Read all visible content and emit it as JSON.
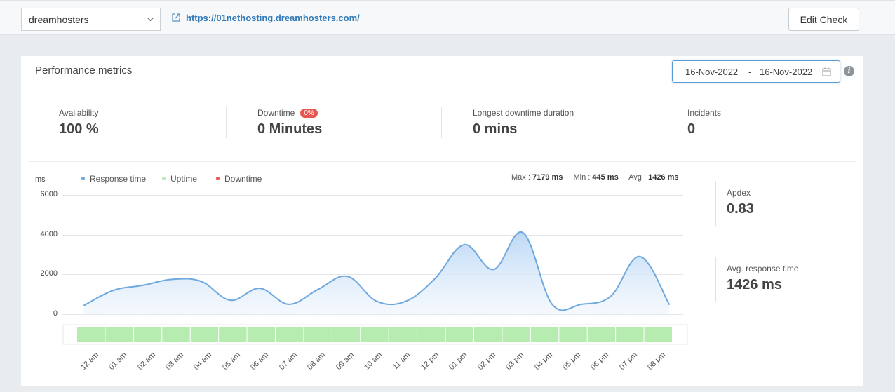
{
  "topbar": {
    "site_select": "dreamhosters",
    "url": "https://01nethosting.dreamhosters.com/",
    "edit_button": "Edit Check"
  },
  "card": {
    "title": "Performance metrics",
    "date_from": "16-Nov-2022",
    "date_sep": "-",
    "date_to": "16-Nov-2022",
    "info_glyph": "i"
  },
  "stats": {
    "availability": {
      "label": "Availability",
      "value": "100 %"
    },
    "downtime": {
      "label": "Downtime",
      "badge": "0%",
      "value": "0 Minutes"
    },
    "longest": {
      "label": "Longest downtime duration",
      "value": "0 mins"
    },
    "incidents": {
      "label": "Incidents",
      "value": "0"
    }
  },
  "chart_header": {
    "unit": "ms",
    "legend": [
      {
        "name": "Response time",
        "color": "#6fa8dc"
      },
      {
        "name": "Uptime",
        "color": "#b7ecb1"
      },
      {
        "name": "Downtime",
        "color": "#e8574f"
      }
    ],
    "max_label": "Max :",
    "max_value": "7179 ms",
    "min_label": "Min :",
    "min_value": "445 ms",
    "avg_label": "Avg :",
    "avg_value": "1426 ms"
  },
  "side_stats": {
    "apdex": {
      "label": "Apdex",
      "value": "0.83"
    },
    "avg_response": {
      "label": "Avg. response time",
      "value": "1426 ms"
    }
  },
  "chart_data": {
    "type": "area",
    "x": [
      "12 am",
      "01 am",
      "02 am",
      "03 am",
      "04 am",
      "05 am",
      "06 am",
      "07 am",
      "08 am",
      "09 am",
      "10 am",
      "11 am",
      "12 pm",
      "01 pm",
      "02 pm",
      "03 pm",
      "04 pm",
      "05 pm",
      "06 pm",
      "07 pm",
      "08 pm"
    ],
    "series": [
      {
        "name": "Response time",
        "color": "#6fa8dc",
        "values": [
          450,
          1200,
          1450,
          1750,
          1650,
          700,
          1300,
          500,
          1250,
          1900,
          650,
          650,
          1800,
          3500,
          2250,
          4100,
          500,
          500,
          900,
          2900,
          500
        ]
      }
    ],
    "uptime_blocks": 21,
    "uptime_color": "#b7ecb1",
    "ylim": [
      0,
      6000
    ],
    "yticks": [
      0,
      2000,
      4000,
      6000
    ],
    "grid": true,
    "legend": "top-left"
  }
}
